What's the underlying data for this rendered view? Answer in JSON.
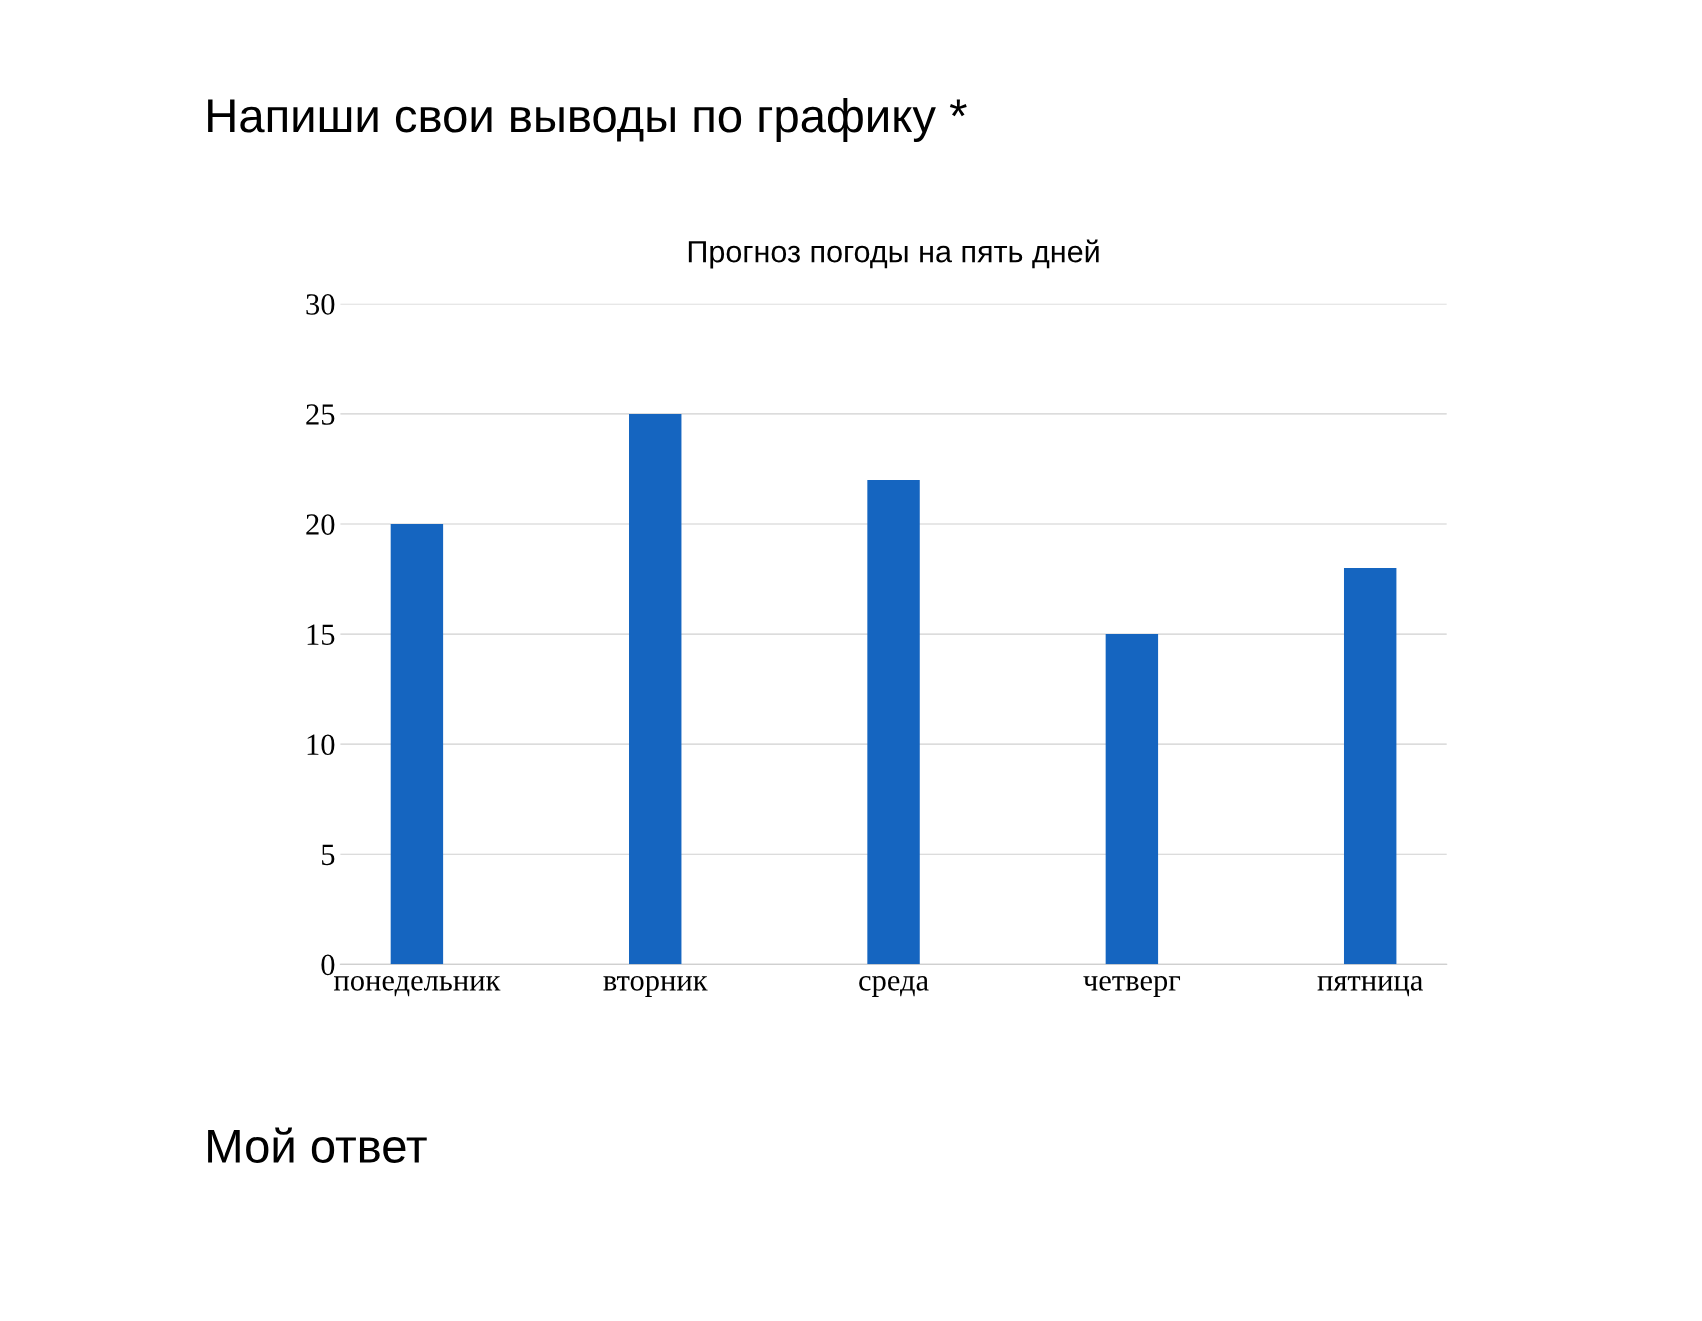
{
  "chart_data": {
    "type": "bar",
    "title": "Прогноз погоды на пять дней",
    "categories": [
      "понедельник",
      "вторник",
      "среда",
      "четверг",
      "пятница"
    ],
    "values": [
      20,
      25,
      22,
      15,
      18
    ],
    "color": "#1565c0",
    "ylim": [
      0,
      30
    ],
    "yticks": [
      0,
      5,
      10,
      15,
      20,
      25,
      30
    ],
    "grid": "y",
    "annotations": [
      "Напиши свои выводы по графику *",
      "Мой ответ"
    ]
  }
}
